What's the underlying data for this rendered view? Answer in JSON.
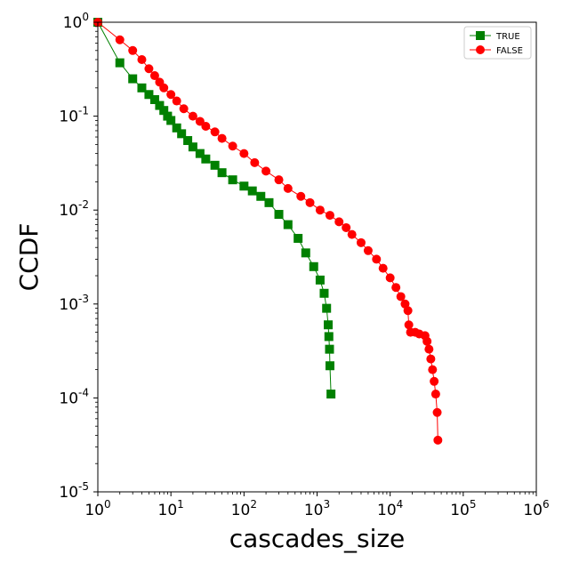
{
  "chart_data": {
    "type": "scatter",
    "xlabel": "cascades_size",
    "ylabel": "CCDF",
    "xscale": "log",
    "yscale": "log",
    "xlim": [
      1,
      1000000
    ],
    "ylim": [
      1e-05,
      1
    ],
    "x_tick_labels": [
      {
        "base": "10",
        "exp": "0"
      },
      {
        "base": "10",
        "exp": "1"
      },
      {
        "base": "10",
        "exp": "2"
      },
      {
        "base": "10",
        "exp": "3"
      },
      {
        "base": "10",
        "exp": "4"
      },
      {
        "base": "10",
        "exp": "5"
      },
      {
        "base": "10",
        "exp": "6"
      }
    ],
    "y_tick_labels": [
      {
        "base": "10",
        "exp": "0"
      },
      {
        "base": "10",
        "exp": "-1"
      },
      {
        "base": "10",
        "exp": "-2"
      },
      {
        "base": "10",
        "exp": "-3"
      },
      {
        "base": "10",
        "exp": "-4"
      },
      {
        "base": "10",
        "exp": "-5"
      }
    ],
    "legend_position": "top-right",
    "grid": false,
    "series": [
      {
        "name": "TRUE",
        "color": "#008000",
        "marker": "square",
        "points": [
          [
            1,
            1.0
          ],
          [
            2,
            0.37
          ],
          [
            3,
            0.25
          ],
          [
            4,
            0.2
          ],
          [
            5,
            0.17
          ],
          [
            6,
            0.15
          ],
          [
            7,
            0.13
          ],
          [
            8,
            0.115
          ],
          [
            9,
            0.1
          ],
          [
            10,
            0.09
          ],
          [
            12,
            0.075
          ],
          [
            14,
            0.065
          ],
          [
            17,
            0.055
          ],
          [
            20,
            0.047
          ],
          [
            25,
            0.04
          ],
          [
            30,
            0.035
          ],
          [
            40,
            0.03
          ],
          [
            50,
            0.025
          ],
          [
            70,
            0.021
          ],
          [
            100,
            0.018
          ],
          [
            130,
            0.016
          ],
          [
            170,
            0.014
          ],
          [
            220,
            0.012
          ],
          [
            300,
            0.009
          ],
          [
            400,
            0.007
          ],
          [
            550,
            0.005
          ],
          [
            700,
            0.0035
          ],
          [
            900,
            0.0025
          ],
          [
            1100,
            0.0018
          ],
          [
            1250,
            0.0013
          ],
          [
            1350,
            0.0009
          ],
          [
            1420,
            0.0006
          ],
          [
            1450,
            0.00045
          ],
          [
            1480,
            0.00033
          ],
          [
            1500,
            0.00022
          ],
          [
            1550,
            0.00011
          ]
        ]
      },
      {
        "name": "FALSE",
        "color": "#ff0000",
        "marker": "circle",
        "points": [
          [
            1,
            1.0
          ],
          [
            2,
            0.65
          ],
          [
            3,
            0.5
          ],
          [
            4,
            0.4
          ],
          [
            5,
            0.32
          ],
          [
            6,
            0.27
          ],
          [
            7,
            0.23
          ],
          [
            8,
            0.2
          ],
          [
            10,
            0.17
          ],
          [
            12,
            0.145
          ],
          [
            15,
            0.12
          ],
          [
            20,
            0.1
          ],
          [
            25,
            0.088
          ],
          [
            30,
            0.078
          ],
          [
            40,
            0.068
          ],
          [
            50,
            0.058
          ],
          [
            70,
            0.048
          ],
          [
            100,
            0.04
          ],
          [
            140,
            0.032
          ],
          [
            200,
            0.026
          ],
          [
            300,
            0.021
          ],
          [
            400,
            0.017
          ],
          [
            600,
            0.014
          ],
          [
            800,
            0.012
          ],
          [
            1100,
            0.01
          ],
          [
            1500,
            0.0088
          ],
          [
            2000,
            0.0075
          ],
          [
            2500,
            0.0065
          ],
          [
            3000,
            0.0055
          ],
          [
            4000,
            0.0045
          ],
          [
            5000,
            0.0037
          ],
          [
            6500,
            0.003
          ],
          [
            8000,
            0.0024
          ],
          [
            10000,
            0.0019
          ],
          [
            12000,
            0.0015
          ],
          [
            14000,
            0.0012
          ],
          [
            16000,
            0.001
          ],
          [
            17500,
            0.00085
          ],
          [
            18000,
            0.0006
          ],
          [
            19000,
            0.0005
          ],
          [
            22000,
            0.0005
          ],
          [
            25000,
            0.00048
          ],
          [
            30000,
            0.00046
          ],
          [
            32000,
            0.0004
          ],
          [
            34000,
            0.00033
          ],
          [
            36000,
            0.00026
          ],
          [
            38000,
            0.0002
          ],
          [
            40000,
            0.00015
          ],
          [
            42000,
            0.00011
          ],
          [
            44000,
            7e-05
          ],
          [
            45000,
            3.55e-05
          ]
        ]
      }
    ]
  }
}
